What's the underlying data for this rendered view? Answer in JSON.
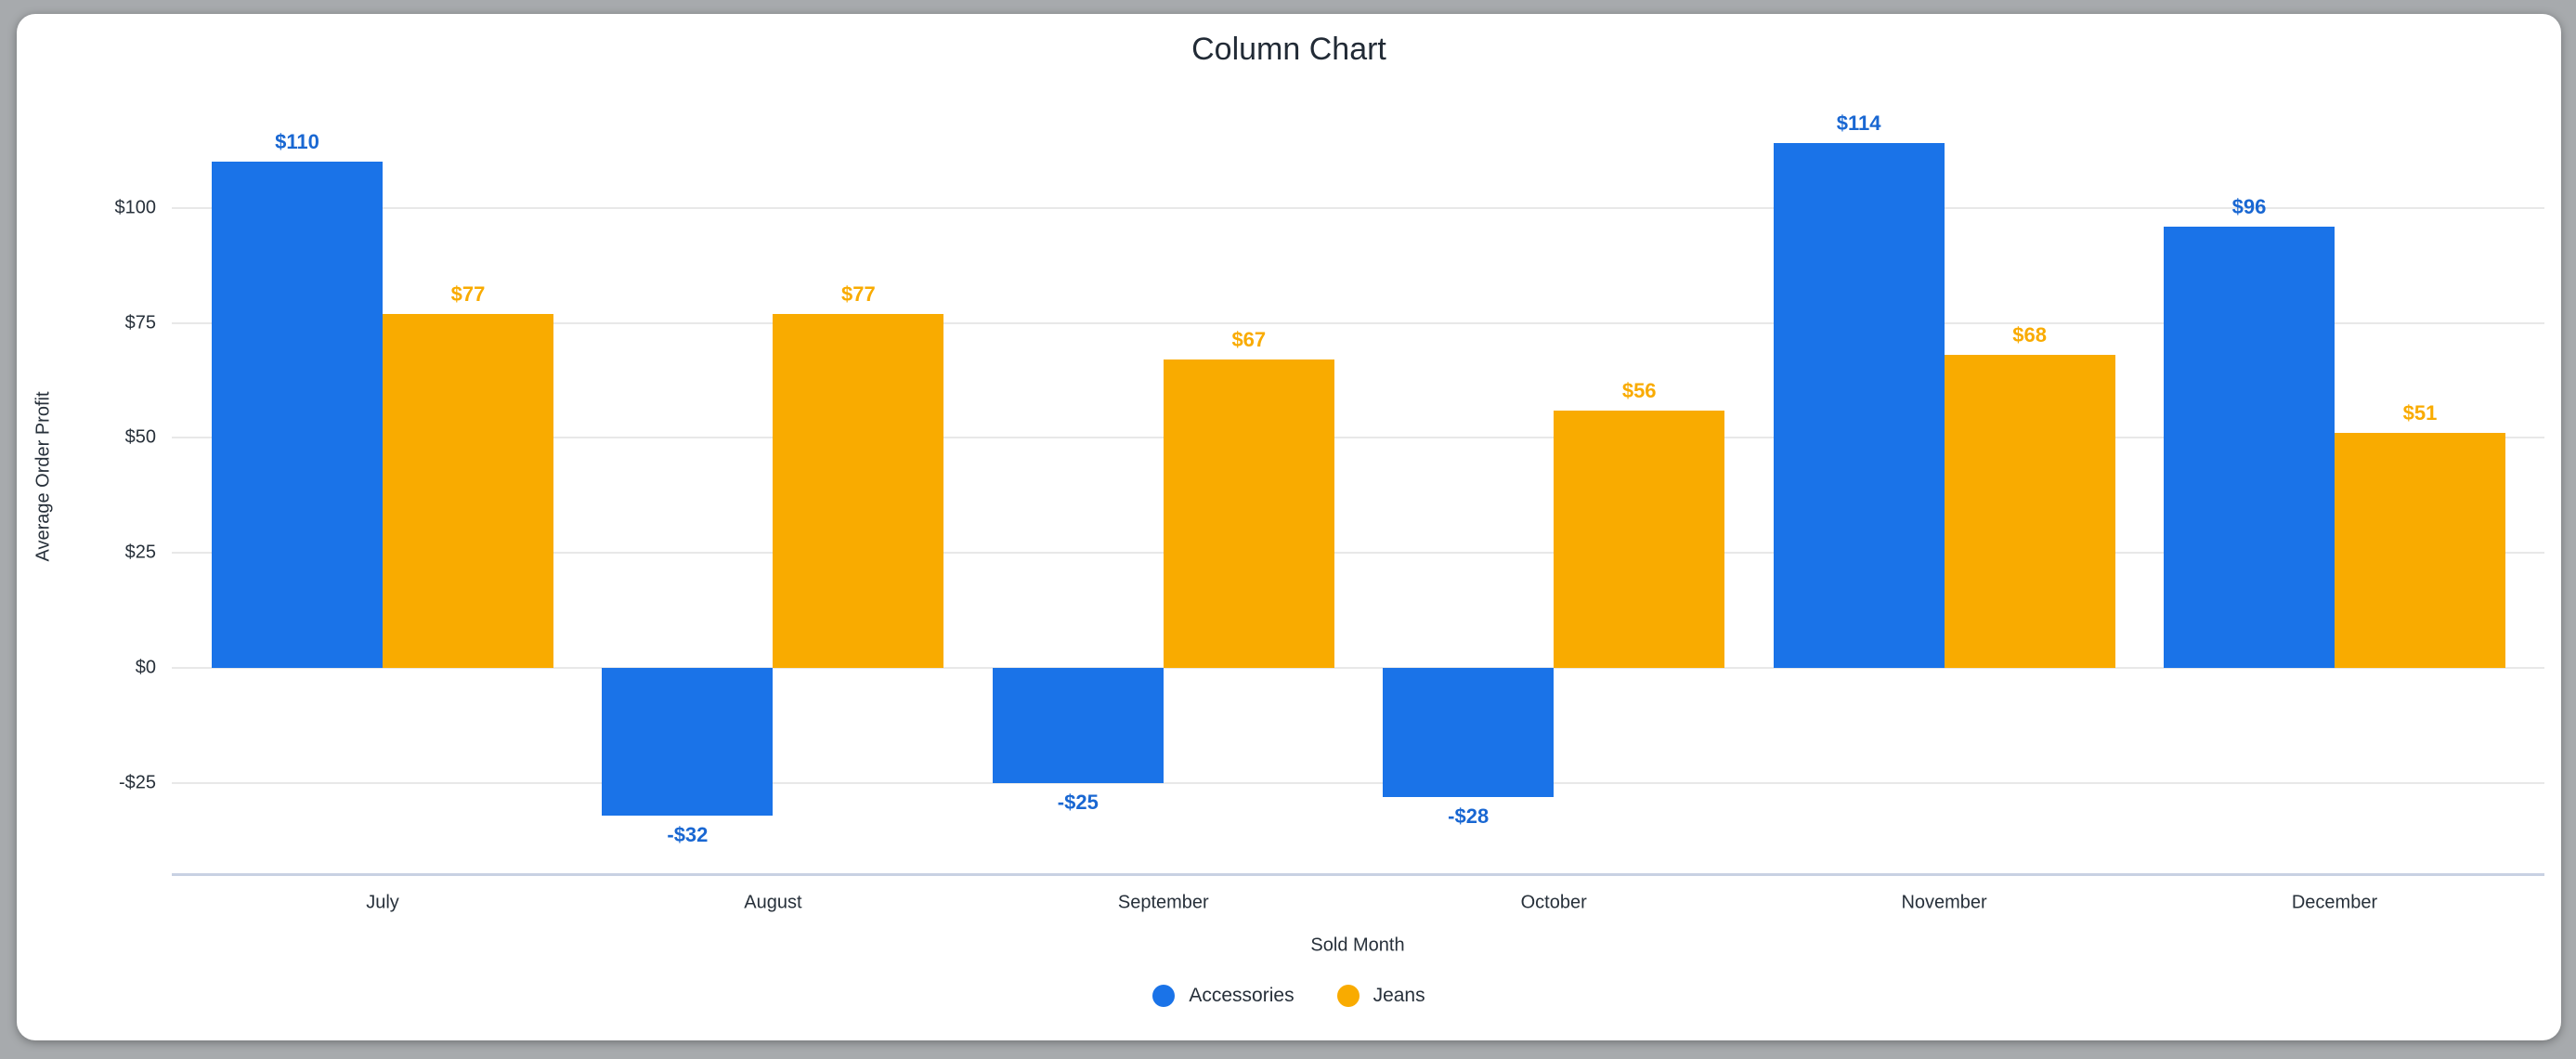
{
  "colors": {
    "background": "#a7aaad",
    "card": "#ffffff",
    "gridline": "#e8e8e8",
    "axis_line": "#c8d1e3",
    "axis_text": "#27303a",
    "title_text": "#222b36"
  },
  "chart_data": {
    "type": "bar",
    "title": "Column Chart",
    "xlabel": "Sold Month",
    "ylabel": "Average Order Profit",
    "categories": [
      "July",
      "August",
      "September",
      "October",
      "November",
      "December"
    ],
    "series": [
      {
        "name": "Accessories",
        "color": "#1a73e8",
        "label_color": "#1967d2",
        "values": [
          110,
          -32,
          -25,
          -28,
          114,
          96
        ],
        "labels": [
          "$110",
          "-$32",
          "-$25",
          "-$28",
          "$114",
          "$96"
        ]
      },
      {
        "name": "Jeans",
        "color": "#f9ab00",
        "label_color": "#f9ab00",
        "values": [
          77,
          77,
          67,
          56,
          68,
          51
        ],
        "labels": [
          "$77",
          "$77",
          "$67",
          "$56",
          "$68",
          "$51"
        ]
      }
    ],
    "y_ticks": [
      {
        "value": -25,
        "label": "-$25"
      },
      {
        "value": 0,
        "label": "$0"
      },
      {
        "value": 25,
        "label": "$25"
      },
      {
        "value": 50,
        "label": "$50"
      },
      {
        "value": 75,
        "label": "$75"
      },
      {
        "value": 100,
        "label": "$100"
      }
    ],
    "ylim": [
      -45,
      128
    ],
    "grid": true,
    "legend_position": "bottom"
  }
}
